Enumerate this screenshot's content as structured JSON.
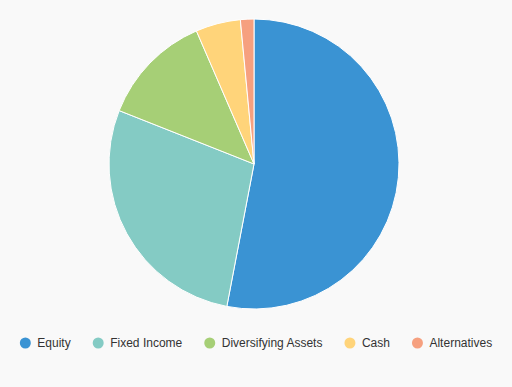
{
  "chart_data": {
    "type": "pie",
    "categories": [
      "Equity",
      "Fixed Income",
      "Diversifying Assets",
      "Cash",
      "Alternatives"
    ],
    "values": [
      53,
      28,
      12.5,
      5,
      1.5
    ],
    "colors": [
      "#3a93d3",
      "#84cbc4",
      "#a6cf76",
      "#ffd47a",
      "#f6a07f"
    ],
    "legend": "bottom"
  }
}
